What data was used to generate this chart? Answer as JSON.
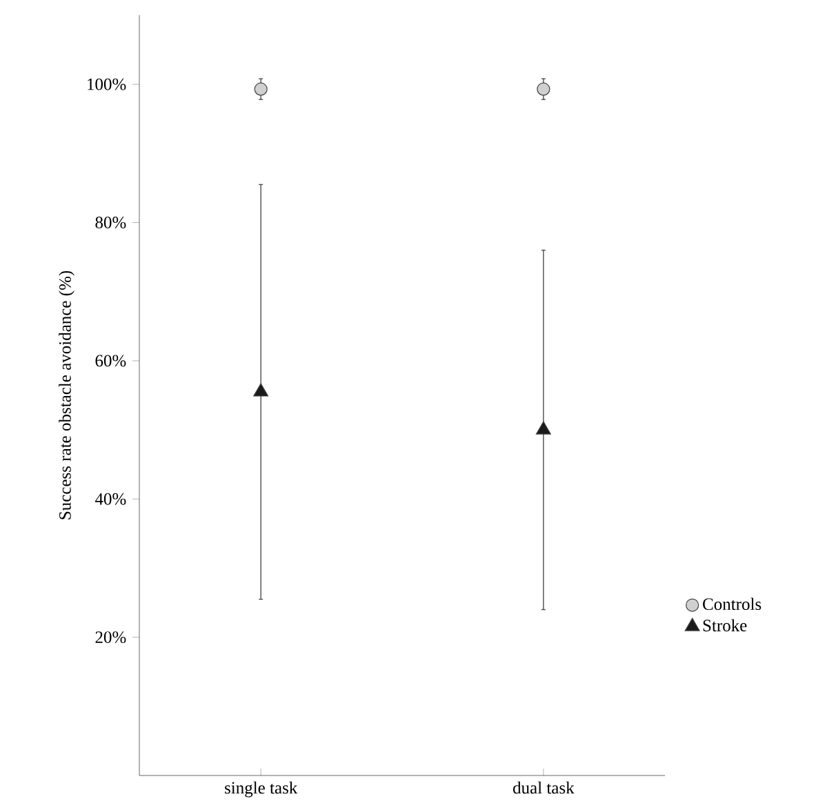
{
  "chart_data": {
    "type": "scatter",
    "ylabel": "Success rate obstacle avoidance (%)",
    "categories": [
      "single task",
      "dual task"
    ],
    "series": [
      {
        "name": "Controls",
        "color": "#d0d0d0",
        "marker": "circle",
        "values": [
          99.3,
          99.3
        ],
        "errors": [
          1.5,
          1.5
        ]
      },
      {
        "name": "Stroke",
        "color": "#1a1a1a",
        "marker": "triangle",
        "values": [
          55.5,
          50
        ],
        "errors": [
          30,
          26
        ]
      }
    ],
    "ylim": [
      0,
      110
    ],
    "yticks": [
      {
        "value": 20,
        "label": "20%"
      },
      {
        "value": 40,
        "label": "40%"
      },
      {
        "value": 60,
        "label": "60%"
      },
      {
        "value": 80,
        "label": "80%"
      },
      {
        "value": 100,
        "label": "100%"
      }
    ],
    "grid": false,
    "legend": "right"
  }
}
